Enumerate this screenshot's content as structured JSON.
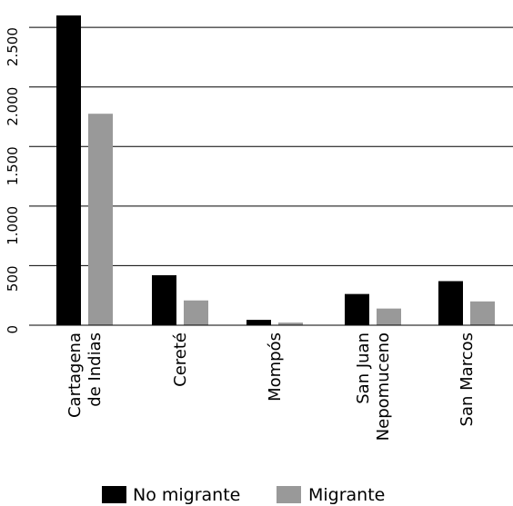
{
  "chart_data": {
    "type": "bar",
    "categories": [
      [
        "Cartagena",
        "de Indias"
      ],
      [
        "Cereté"
      ],
      [
        "Mompós"
      ],
      [
        "San Juan",
        "Nepomuceno"
      ],
      [
        "San Marcos"
      ]
    ],
    "series": [
      {
        "name": "No migrante",
        "color": "#000000",
        "values": [
          2600,
          420,
          45,
          262,
          370
        ]
      },
      {
        "name": "Migrante",
        "color": "#999999",
        "values": [
          1775,
          208,
          22,
          140,
          200
        ]
      }
    ],
    "y_ticks": [
      {
        "value": 0,
        "label": "0"
      },
      {
        "value": 500,
        "label": "500"
      },
      {
        "value": 1000,
        "label": "1.000"
      },
      {
        "value": 1500,
        "label": "1.500"
      },
      {
        "value": 2000,
        "label": "2.000"
      },
      {
        "value": 2500,
        "label": "2.500"
      }
    ],
    "ylim": [
      0,
      2600
    ],
    "grid": true,
    "legend_position": "bottom-center",
    "title": "",
    "xlabel": "",
    "ylabel": ""
  }
}
